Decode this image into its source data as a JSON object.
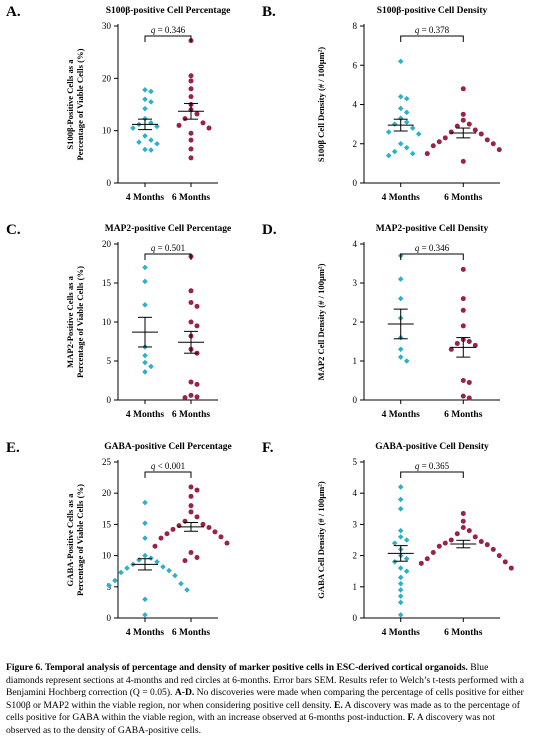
{
  "colors": {
    "months4": "#2cb1c8",
    "months6": "#9b2246",
    "axis": "#000000"
  },
  "chart_data": [
    {
      "letter": "A.",
      "type": "scatter",
      "title": "S100β-positive Cell Percentage",
      "ylabel": [
        "S100β-Positive Cells as a",
        "Percentage of Viable Cells (%)"
      ],
      "ylim": [
        0,
        30
      ],
      "yticks": [
        "0",
        "10",
        "20",
        "30"
      ],
      "categories": [
        "4 Months",
        "6 Months"
      ],
      "q": "q = 0.346",
      "series": [
        {
          "values": [
            17.8,
            17.5,
            16.0,
            15.5,
            14.2,
            12.3,
            11.5,
            11.2,
            10.8,
            10.5,
            9.0,
            8.2,
            7.8,
            7.5,
            6.4,
            6.3
          ],
          "mean": 11.2,
          "sem": 1.0
        },
        {
          "values": [
            27.2,
            20.5,
            19.5,
            18.0,
            16.5,
            15.0,
            14.0,
            13.2,
            12.3,
            11.5,
            11.0,
            10.5,
            9.5,
            8.2,
            6.5,
            4.8
          ],
          "mean": 13.7,
          "sem": 1.5
        }
      ]
    },
    {
      "letter": "B.",
      "type": "scatter",
      "title": "S100β-positive Cell Density",
      "ylabel": [
        "S100β Cell Density (# / 100μm²)"
      ],
      "ylim": [
        0,
        8
      ],
      "yticks": [
        "0",
        "2",
        "4",
        "6",
        "8"
      ],
      "categories": [
        "4 Months",
        "6 Months"
      ],
      "q": "q = 0.378",
      "series": [
        {
          "values": [
            6.2,
            4.4,
            4.3,
            3.8,
            3.6,
            3.3,
            3.1,
            3.0,
            2.8,
            2.6,
            2.5,
            2.0,
            1.8,
            1.6,
            1.5,
            1.4
          ],
          "mean": 2.95,
          "sem": 0.3
        },
        {
          "values": [
            4.8,
            3.5,
            3.2,
            3.0,
            2.9,
            2.7,
            2.6,
            2.5,
            2.3,
            2.2,
            2.1,
            2.0,
            1.9,
            1.7,
            1.5,
            1.1
          ],
          "mean": 2.55,
          "sem": 0.25
        }
      ]
    },
    {
      "letter": "C.",
      "type": "scatter",
      "title": "MAP2-positive Cell Percentage",
      "ylabel": [
        "MAP2-Positive Cells as a",
        "Percentage of Viable Cells (%)"
      ],
      "ylim": [
        0,
        20
      ],
      "yticks": [
        "0",
        "5",
        "10",
        "15",
        "20"
      ],
      "categories": [
        "4 Months",
        "6 Months"
      ],
      "q": "q = 0.501",
      "series": [
        {
          "values": [
            17.0,
            15.2,
            12.2,
            6.8,
            5.7,
            4.8,
            4.3,
            3.6
          ],
          "mean": 8.7,
          "sem": 1.9
        },
        {
          "values": [
            18.4,
            14.0,
            12.5,
            12.0,
            10.0,
            9.5,
            8.2,
            6.5,
            6.0,
            2.3,
            2.0,
            0.6,
            0.4,
            0.3
          ],
          "mean": 7.4,
          "sem": 1.4
        }
      ]
    },
    {
      "letter": "D.",
      "type": "scatter",
      "title": "MAP2-positive Cell Density",
      "ylabel": [
        "MAP2 Cell Density (# / 100μm²)"
      ],
      "ylim": [
        0,
        4
      ],
      "yticks": [
        "0",
        "1",
        "2",
        "3",
        "4"
      ],
      "categories": [
        "4 Months",
        "6 Months"
      ],
      "q": "q = 0.346",
      "series": [
        {
          "values": [
            3.7,
            3.1,
            2.6,
            2.1,
            1.6,
            1.3,
            1.1,
            1.0
          ],
          "mean": 1.95,
          "sem": 0.38
        },
        {
          "values": [
            3.35,
            2.6,
            2.3,
            1.9,
            1.55,
            1.5,
            1.45,
            1.4,
            1.3,
            0.5,
            0.45,
            0.1,
            0.05
          ],
          "mean": 1.35,
          "sem": 0.25
        }
      ]
    },
    {
      "letter": "E.",
      "type": "scatter",
      "title": "GABA-positive Cell Percentage",
      "ylabel": [
        "GABA-Positive Cells as a",
        "Percentage of Viable Cells (%)"
      ],
      "ylim": [
        0,
        25
      ],
      "yticks": [
        "0",
        "5",
        "10",
        "15",
        "20",
        "25"
      ],
      "categories": [
        "4 Months",
        "6 Months"
      ],
      "q": "q < 0.001",
      "series": [
        {
          "values": [
            18.5,
            15.2,
            12.8,
            10.0,
            9.6,
            9.3,
            9.0,
            8.6,
            8.2,
            8.0,
            7.6,
            7.3,
            6.8,
            6.0,
            5.5,
            5.2,
            4.5,
            3.0,
            0.5
          ],
          "mean": 8.6,
          "sem": 0.9
        },
        {
          "values": [
            21.0,
            20.5,
            19.5,
            18.0,
            17.0,
            16.2,
            15.5,
            15.0,
            14.8,
            14.5,
            14.2,
            13.8,
            13.5,
            13.0,
            12.8,
            12.0,
            11.5,
            10.5,
            9.7,
            9.2
          ],
          "mean": 14.6,
          "sem": 0.7
        }
      ]
    },
    {
      "letter": "F.",
      "type": "scatter",
      "title": "GABA-positive Cell Density",
      "ylabel": [
        "GABA Cell Density (# / 100μm²)"
      ],
      "ylim": [
        0,
        5
      ],
      "yticks": [
        "0",
        "1",
        "2",
        "3",
        "4",
        "5"
      ],
      "categories": [
        "4 Months",
        "6 Months"
      ],
      "q": "q = 0.365",
      "series": [
        {
          "values": [
            4.2,
            3.8,
            3.5,
            2.8,
            2.6,
            2.5,
            2.4,
            2.2,
            2.0,
            1.9,
            1.8,
            1.6,
            1.5,
            1.3,
            1.1,
            0.9,
            0.7,
            0.5,
            0.1
          ],
          "mean": 2.07,
          "sem": 0.25
        },
        {
          "values": [
            3.35,
            3.1,
            2.9,
            2.8,
            2.7,
            2.6,
            2.5,
            2.45,
            2.4,
            2.35,
            2.3,
            2.2,
            2.1,
            2.0,
            1.9,
            1.8,
            1.75,
            1.6
          ],
          "mean": 2.37,
          "sem": 0.12
        }
      ]
    }
  ],
  "caption": {
    "title": "Figure 6. Temporal analysis of percentage and density of marker positive cells in ESC-derived cortical organoids.",
    "text1": " Blue diamonds represent sections at 4-months and red circles at 6-months. Error bars SEM. Results refer to Welch’s t-tests performed with a Benjamini Hochberg correction (Q = 0.05). ",
    "ad_label": "A-D.",
    "text2": " No discoveries were made when comparing the percentage of cells positive for either S100β or MAP2 within the viable region, nor when considering positive cell density. ",
    "e_label": "E.",
    "text3": " A discovery was made as to the percentage of cells positive for GABA within the viable region, with an increase observed at 6-months post-induction. ",
    "f_label": "F.",
    "text4": " A discovery was not observed as to the density of GABA-positive cells."
  }
}
